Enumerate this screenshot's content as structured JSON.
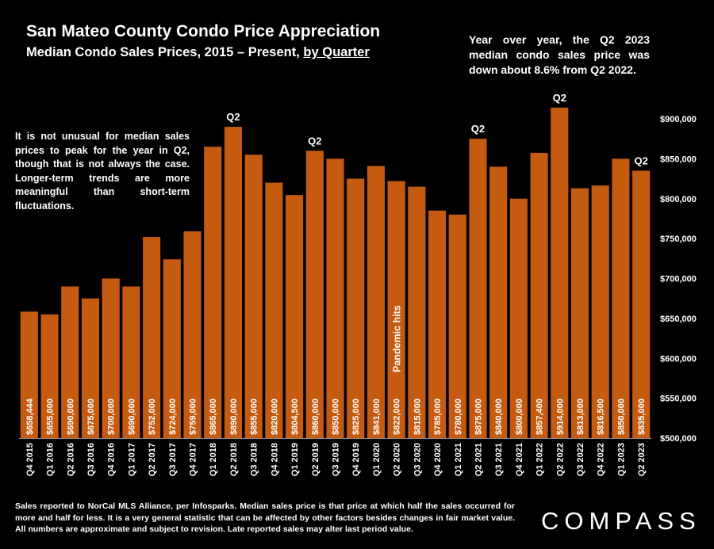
{
  "title": "San Mateo County Condo Price Appreciation",
  "subtitle_main": "Median Condo Sales Prices, 2015 – Present, ",
  "subtitle_link": "by Quarter",
  "yoy_note": "Year over year, the Q2 2023 median condo sales price was down about 8.6% from Q2 2022.",
  "peak_note": "It is not unusual for median sales prices to peak for the year in Q2, though that is not always the case. Longer-term trends are more meaningful than short-term fluctuations.",
  "footer": "Sales reported to NorCal MLS Alliance, per Infosparks. Median sales price is that price at which half the sales occurred for more and half for less. It is a very general statistic that can be affected by other factors besides changes in fair market value. All numbers are approximate and subject to revision. Late reported sales may alter last period value.",
  "logo": "COMPASS",
  "colors": {
    "bar": "#c55a11",
    "background": "#000000",
    "text": "#ffffff"
  },
  "chart_data": {
    "type": "bar",
    "title": "San Mateo County Condo Price Appreciation",
    "subtitle": "Median Condo Sales Prices, 2015 – Present, by Quarter",
    "categories": [
      "Q4 2015",
      "Q1 2016",
      "Q2 2016",
      "Q3 2016",
      "Q4 2016",
      "Q1 2017",
      "Q2 2017",
      "Q3 2017",
      "Q4 2017",
      "Q1 2018",
      "Q2 2018",
      "Q3 2018",
      "Q4 2018",
      "Q1 2019",
      "Q2 2019",
      "Q3 2019",
      "Q4 2019",
      "Q1 2020",
      "Q2 2020",
      "Q3 2020",
      "Q4 2020",
      "Q1 2021",
      "Q2 2021",
      "Q3 2021",
      "Q4 2021",
      "Q1 2022",
      "Q2 2022",
      "Q3 2022",
      "Q4 2022",
      "Q1 2023",
      "Q2 2023"
    ],
    "values": [
      658444,
      655000,
      690000,
      675000,
      700000,
      690000,
      752000,
      724000,
      759000,
      865000,
      890000,
      855000,
      820000,
      804500,
      860000,
      850000,
      825000,
      841000,
      822000,
      815000,
      785000,
      780000,
      875000,
      840000,
      800000,
      857400,
      914000,
      813000,
      816500,
      850000,
      835000
    ],
    "value_labels": [
      "$658,444",
      "$655,000",
      "$690,000",
      "$675,000",
      "$700,000",
      "$690,000",
      "$752,000",
      "$724,000",
      "$759,000",
      "$865,000",
      "$890,000",
      "$855,000",
      "$820,000",
      "$804,500",
      "$860,000",
      "$850,000",
      "$825,000",
      "$841,000",
      "$822,000",
      "$815,000",
      "$785,000",
      "$780,000",
      "$875,000",
      "$840,000",
      "$800,000",
      "$857,400",
      "$914,000",
      "$813,000",
      "$816,500",
      "$850,000",
      "$835,000"
    ],
    "ylim": [
      500000,
      900000
    ],
    "yticks": [
      500000,
      550000,
      600000,
      650000,
      700000,
      750000,
      800000,
      850000,
      900000
    ],
    "ytick_labels": [
      "$500,000",
      "$550,000",
      "$600,000",
      "$650,000",
      "$700,000",
      "$750,000",
      "$800,000",
      "$850,000",
      "$900,000"
    ],
    "y_axis_side": "right",
    "grid": false,
    "peak_markers": [
      {
        "category": "Q2 2018",
        "label": "Q2"
      },
      {
        "category": "Q2 2019",
        "label": "Q2"
      },
      {
        "category": "Q2 2021",
        "label": "Q2"
      },
      {
        "category": "Q2 2022",
        "label": "Q2"
      },
      {
        "category": "Q2 2023",
        "label": "Q2"
      }
    ],
    "annotations": [
      {
        "category": "Q2 2020",
        "text": "Pandemic hits"
      }
    ]
  }
}
